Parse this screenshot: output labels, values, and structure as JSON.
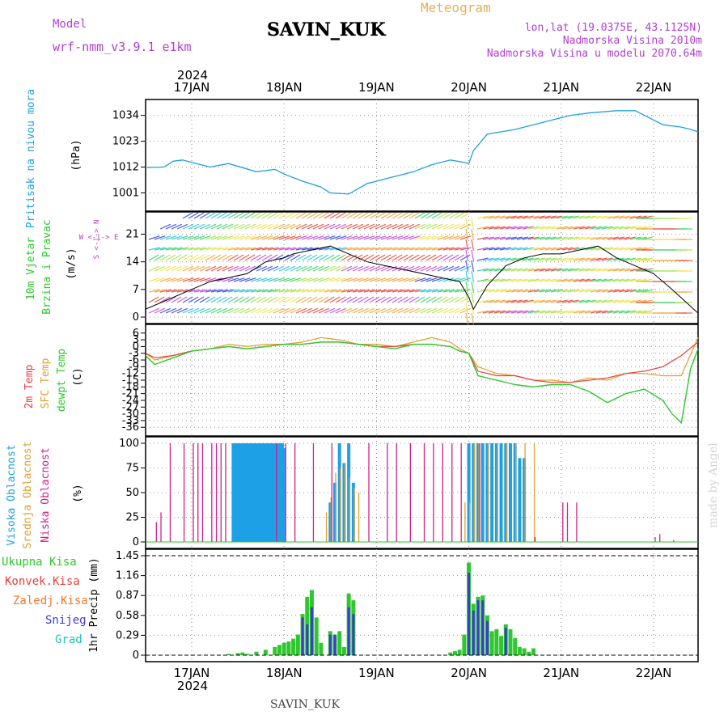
{
  "header": {
    "model_label": "Model",
    "model_name": "wrf-nmm_v3.9.1 e1km",
    "station": "SAVIN_KUK",
    "title": "Meteogram",
    "coords": "lon,lat (19.0375E, 43.1125N)",
    "elevation": "Nadmorska Visina 2010m",
    "model_elevation": "Nadmorska Visina u modelu 2070.64m",
    "footer_station": "SAVIN_KUK",
    "watermark": "made by Angel"
  },
  "colors": {
    "pressure": "#1ea0e6",
    "t2m": "#e8403c",
    "tsfc": "#e0a030",
    "dewpt": "#2ec82e",
    "high_cloud": "#1ea0e6",
    "mid_cloud": "#e0a030",
    "low_cloud": "#d0208c",
    "total_precip": "#2ec82e",
    "conv_precip": "#e8403c",
    "frozen_precip": "#f07828",
    "snow": "#3c3cd2",
    "hail": "#20c0c0",
    "model_label": "#b040d0",
    "title": "#e0b060"
  },
  "time_axis": {
    "year_label": "2024",
    "days": [
      "17JAN",
      "18JAN",
      "19JAN",
      "20JAN",
      "21JAN",
      "22JAN"
    ]
  },
  "panels": {
    "pressure": {
      "label": "Pritisak na nivou mora",
      "unit": "(hPa)",
      "ticks": [
        "1001",
        "1012",
        "1023",
        "1034"
      ]
    },
    "wind": {
      "label1": "10m Vjetar",
      "label2": "Brzina i Pravac",
      "unit": "(m/s)",
      "compass": "W <-|-> E",
      "compass2": "S <-|-> N",
      "ticks": [
        "0",
        "7",
        "14",
        "21"
      ]
    },
    "temp": {
      "label1": "2m Temp",
      "label2": "SFC Temp",
      "label3": "dewpt Temp",
      "unit": "(C)",
      "ticks": [
        "6",
        "3",
        "0",
        "-3",
        "-6",
        "-9",
        "-12",
        "-15",
        "-18",
        "-21",
        "-24",
        "-27",
        "-30",
        "-33",
        "-36"
      ]
    },
    "cloud": {
      "label1": "Visoka Oblacnost",
      "label2": "Srednja Oblacnost",
      "label3": "Niska Oblacnost",
      "unit": "(%)",
      "ticks": [
        "0",
        "25",
        "50",
        "75",
        "100"
      ]
    },
    "precip": {
      "label": "1hr Precip (mm)",
      "legend": [
        "Ukupna Kisa",
        "Konvek.Kisa",
        "Zaledj.Kisa",
        "Snijeg",
        "Grad"
      ],
      "ticks": [
        "0",
        "0.29",
        "0.58",
        "0.87",
        "1.16",
        "1.45"
      ]
    }
  },
  "chart_data": [
    {
      "type": "line",
      "title": "Pritisak na nivou mora",
      "ylabel": "(hPa)",
      "ylim": [
        996,
        1038
      ],
      "x_unit": "days since 17JAN 00:00",
      "series": [
        {
          "name": "Pritisak na nivou mora",
          "x": [
            -0.5,
            -0.3,
            -0.2,
            -0.1,
            0.0,
            0.2,
            0.4,
            0.7,
            0.9,
            1.0,
            1.2,
            1.4,
            1.5,
            1.7,
            1.9,
            2.0,
            2.2,
            2.4,
            2.6,
            2.8,
            2.95,
            3.0,
            3.05,
            3.2,
            3.5,
            3.7,
            3.9,
            4.1,
            4.3,
            4.6,
            4.8,
            4.9,
            5.1,
            5.3,
            5.4,
            5.5
          ],
          "y": [
            1011.8,
            1012,
            1014.5,
            1015,
            1014,
            1012,
            1013.5,
            1010,
            1011,
            1009,
            1006,
            1003.5,
            1001,
            1000.5,
            1005,
            1006,
            1008,
            1010,
            1013,
            1015,
            1014,
            1013.5,
            1019,
            1026,
            1028,
            1030,
            1032,
            1034,
            1035,
            1036,
            1036,
            1034,
            1030,
            1029,
            1028,
            1027
          ]
        }
      ]
    },
    {
      "type": "line",
      "title": "10m Vjetar Brzina i Pravac",
      "ylabel": "(m/s)",
      "ylim": [
        0,
        25
      ],
      "series": [
        {
          "name": "10m Vjetar",
          "x": [
            -0.5,
            -0.3,
            -0.1,
            0.0,
            0.2,
            0.4,
            0.6,
            0.8,
            1.0,
            1.1,
            1.3,
            1.5,
            1.7,
            1.9,
            2.1,
            2.3,
            2.5,
            2.7,
            2.9,
            3.0,
            3.05,
            3.2,
            3.4,
            3.6,
            3.8,
            4.0,
            4.2,
            4.4,
            4.6,
            4.8,
            5.0,
            5.2,
            5.5
          ],
          "y": [
            2,
            4,
            6,
            7,
            9,
            10,
            11,
            14,
            15,
            16,
            17,
            18,
            16,
            14,
            13,
            12,
            11,
            10,
            9,
            5,
            2,
            8,
            13,
            15,
            16,
            16,
            17,
            18,
            15,
            13,
            11,
            7,
            1
          ]
        }
      ]
    },
    {
      "type": "line",
      "title": "2m Temp / SFC Temp / dewpt Temp",
      "ylabel": "(C)",
      "ylim": [
        -37,
        7
      ],
      "series": [
        {
          "name": "2m Temp",
          "x": [
            -0.5,
            -0.4,
            -0.2,
            0.0,
            0.2,
            0.4,
            0.6,
            0.8,
            1.0,
            1.2,
            1.4,
            1.6,
            1.8,
            2.0,
            2.2,
            2.4,
            2.6,
            2.8,
            2.9,
            3.0,
            3.1,
            3.3,
            3.5,
            3.7,
            3.9,
            4.1,
            4.3,
            4.5,
            4.7,
            4.9,
            5.1,
            5.3,
            5.5
          ],
          "y": [
            -3,
            -5,
            -4,
            -2,
            -1,
            0,
            -1,
            0,
            1,
            1,
            2,
            2,
            1,
            0,
            0,
            1,
            1,
            0,
            -2,
            -3,
            -11,
            -13,
            -13,
            -15,
            -16,
            -16,
            -15,
            -14,
            -12,
            -11,
            -9,
            -4,
            2
          ]
        },
        {
          "name": "SFC Temp",
          "x": [
            -0.5,
            -0.4,
            -0.2,
            0.0,
            0.2,
            0.4,
            0.6,
            0.8,
            1.0,
            1.2,
            1.4,
            1.6,
            1.8,
            2.0,
            2.2,
            2.4,
            2.6,
            2.8,
            2.9,
            3.0,
            3.1,
            3.3,
            3.5,
            3.7,
            3.9,
            4.1,
            4.3,
            4.5,
            4.7,
            4.9,
            5.1,
            5.3,
            5.5
          ],
          "y": [
            -3,
            -6,
            -4,
            -2,
            -1,
            1,
            0,
            1,
            1,
            2,
            4,
            3,
            1,
            1,
            0,
            2,
            4,
            2,
            -1,
            -3,
            -9,
            -12,
            -13,
            -15,
            -15,
            -16,
            -14,
            -15,
            -12,
            -12,
            -13,
            -13,
            4
          ]
        },
        {
          "name": "dewpt Temp",
          "x": [
            -0.5,
            -0.4,
            -0.2,
            0.0,
            0.2,
            0.4,
            0.6,
            0.8,
            1.0,
            1.2,
            1.4,
            1.6,
            1.8,
            2.0,
            2.2,
            2.4,
            2.6,
            2.8,
            2.9,
            3.0,
            3.1,
            3.3,
            3.5,
            3.7,
            3.9,
            4.1,
            4.3,
            4.5,
            4.7,
            4.9,
            5.1,
            5.2,
            5.3,
            5.4,
            5.5
          ],
          "y": [
            -4,
            -8,
            -5,
            -2,
            -1,
            0,
            -1,
            0,
            1,
            1,
            2,
            2,
            1,
            0,
            -1,
            1,
            1,
            0,
            -2,
            -3,
            -13,
            -15,
            -17,
            -18,
            -17,
            -17,
            -20,
            -25,
            -21,
            -19,
            -24,
            -30,
            -34,
            -10,
            -1
          ]
        }
      ]
    },
    {
      "type": "bar",
      "title": "Oblacnost",
      "ylabel": "(%)",
      "ylim": [
        0,
        100
      ],
      "series": [
        {
          "name": "Visoka Oblacnost",
          "x": [
            0.45,
            0.48,
            0.5,
            0.52,
            0.55,
            0.58,
            0.6,
            0.62,
            0.65,
            0.68,
            0.7,
            0.72,
            0.75,
            0.78,
            0.8,
            0.82,
            0.85,
            0.88,
            0.9,
            0.92,
            0.95,
            0.98,
            1.0,
            1.5,
            1.55,
            1.6,
            1.65,
            1.7,
            1.75,
            3.0,
            3.05,
            3.1,
            3.15,
            3.2,
            3.25,
            3.3,
            3.35,
            3.4,
            3.45,
            3.5,
            3.55,
            3.6
          ],
          "values": [
            100,
            100,
            100,
            100,
            100,
            100,
            100,
            100,
            100,
            100,
            100,
            100,
            100,
            100,
            100,
            100,
            100,
            100,
            100,
            100,
            100,
            100,
            95,
            40,
            60,
            100,
            80,
            100,
            60,
            100,
            100,
            100,
            100,
            100,
            100,
            100,
            100,
            100,
            100,
            100,
            85,
            85
          ]
        },
        {
          "name": "Srednja Oblacnost",
          "x": [
            1.45,
            1.5,
            1.55,
            1.6,
            1.65,
            1.7,
            1.75,
            1.8,
            2.95,
            3.0,
            3.05,
            3.1,
            3.2,
            3.3,
            3.4,
            3.5,
            3.6,
            3.7
          ],
          "values": [
            30,
            45,
            70,
            75,
            80,
            65,
            55,
            50,
            40,
            40,
            100,
            100,
            100,
            100,
            100,
            100,
            100,
            100
          ]
        },
        {
          "name": "Niska Oblacnost",
          "x": [
            -0.55,
            -0.4,
            -0.35,
            -0.25,
            -0.1,
            0.0,
            0.05,
            0.1,
            0.2,
            0.25,
            0.3,
            0.35,
            0.9,
            1.0,
            1.1,
            1.3,
            1.5,
            1.9,
            2.1,
            2.2,
            2.35,
            2.5,
            2.6,
            2.7,
            2.8,
            2.9,
            3.1,
            3.7,
            4.0,
            4.05,
            4.15,
            5.0,
            5.05,
            5.2
          ],
          "values": [
            95,
            20,
            30,
            100,
            100,
            100,
            100,
            100,
            100,
            100,
            100,
            100,
            100,
            100,
            100,
            100,
            100,
            100,
            100,
            100,
            100,
            100,
            100,
            100,
            100,
            100,
            100,
            5,
            40,
            40,
            40,
            5,
            8,
            2
          ]
        }
      ]
    },
    {
      "type": "bar",
      "title": "1hr Precip",
      "ylabel": "(mm)",
      "ylim": [
        0,
        1.45
      ],
      "series": [
        {
          "name": "Ukupna Kisa",
          "x": [
            0.4,
            0.5,
            0.55,
            0.6,
            0.7,
            0.8,
            0.9,
            0.95,
            1.0,
            1.05,
            1.1,
            1.15,
            1.2,
            1.25,
            1.3,
            1.35,
            1.4,
            1.5,
            1.55,
            1.6,
            1.65,
            1.7,
            1.75,
            2.8,
            2.85,
            2.9,
            2.95,
            3.0,
            3.05,
            3.1,
            3.15,
            3.2,
            3.25,
            3.3,
            3.35,
            3.4,
            3.45,
            3.5,
            3.55,
            3.6,
            3.65,
            3.7
          ],
          "values": [
            0.02,
            0.03,
            0.04,
            0.02,
            0.05,
            0.08,
            0.12,
            0.15,
            0.18,
            0.2,
            0.24,
            0.3,
            0.6,
            0.85,
            0.95,
            0.55,
            0.18,
            0.35,
            0.3,
            0.35,
            0.12,
            0.9,
            0.8,
            0.04,
            0.06,
            0.08,
            0.3,
            1.35,
            0.75,
            0.85,
            0.87,
            0.58,
            0.35,
            0.38,
            0.28,
            0.45,
            0.38,
            0.25,
            0.12,
            0.1,
            0.05,
            0.1
          ]
        },
        {
          "name": "Snijeg",
          "x": [
            1.2,
            1.25,
            1.3,
            1.5,
            1.55,
            1.7,
            1.75,
            3.0,
            3.05,
            3.1,
            3.15,
            3.2,
            3.4
          ],
          "values": [
            0.55,
            0.45,
            0.7,
            0.3,
            0.3,
            0.7,
            0.6,
            1.2,
            0.65,
            0.8,
            0.8,
            0.5,
            0.4
          ]
        }
      ]
    }
  ]
}
